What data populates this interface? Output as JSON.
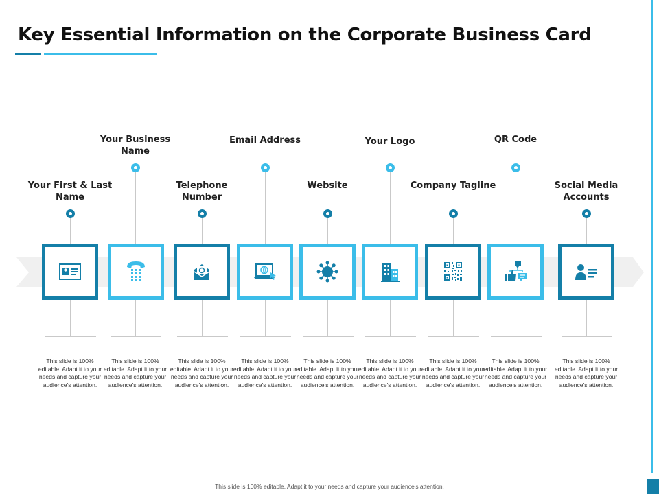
{
  "title": "Key Essential Information on the Corporate Business Card",
  "colors": {
    "dark": "#147fa8",
    "light": "#3bbde9",
    "band": "#f0f0f0"
  },
  "items": [
    {
      "label": "Your First & Last Name",
      "icon": "id-card-icon",
      "desc": "This slide is 100% editable. Adapt it to your needs and capture your audience's attention."
    },
    {
      "label": "Your Business Name",
      "icon": "telephone-icon",
      "desc": "This slide is 100% editable. Adapt it to your needs and capture your audience's attention."
    },
    {
      "label": "Telephone Number",
      "icon": "email-envelope-icon",
      "desc": "This slide is 100% editable. Adapt it to your needs and capture your audience's attention."
    },
    {
      "label": "Email Address",
      "icon": "website-laptop-icon",
      "desc": "This slide is 100% editable. Adapt it to your needs and capture your audience's attention."
    },
    {
      "label": "Website",
      "icon": "gear-network-icon",
      "desc": "This slide is 100% editable. Adapt it to your needs and capture your audience's attention."
    },
    {
      "label": "Your Logo",
      "icon": "building-icon",
      "desc": "This slide is 100% editable. Adapt it to your needs and capture your audience's attention."
    },
    {
      "label": "Company Tagline",
      "icon": "qr-code-icon",
      "desc": "This slide is 100% editable. Adapt it to your needs and capture your audience's attention."
    },
    {
      "label": "QR Code",
      "icon": "social-media-icon",
      "desc": "This slide is 100% editable. Adapt it to your needs and capture your audience's attention."
    },
    {
      "label": "Social Media Accounts",
      "icon": "person-profile-icon",
      "desc": "This slide is 100% editable. Adapt it to your needs and capture your audience's attention."
    }
  ],
  "footer": "This slide is 100% editable. Adapt it to your needs and capture your audience's attention."
}
